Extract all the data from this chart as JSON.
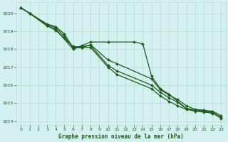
{
  "title": "Graphe pression niveau de la mer (hPa)",
  "background_color": "#d4f0f0",
  "grid_color": "#b8ddd0",
  "line_color": "#1a5c1a",
  "xlim": [
    -0.5,
    23.5
  ],
  "ylim": [
    1013.8,
    1020.6
  ],
  "yticks": [
    1014,
    1015,
    1016,
    1017,
    1018,
    1019,
    1020
  ],
  "xticks": [
    0,
    1,
    2,
    3,
    4,
    5,
    6,
    7,
    8,
    9,
    10,
    11,
    12,
    13,
    14,
    15,
    16,
    17,
    18,
    19,
    20,
    21,
    22,
    23
  ],
  "line1_x": [
    0,
    1,
    3,
    4,
    6,
    7,
    8,
    10,
    13,
    14,
    15,
    16,
    17,
    19,
    20,
    21,
    22
  ],
  "line1_y": [
    1020.3,
    1020.0,
    1019.3,
    1019.1,
    1018.0,
    1018.2,
    1018.4,
    1018.4,
    1018.4,
    1018.3,
    1016.5,
    1015.8,
    1015.5,
    1014.7,
    1014.6,
    1014.6,
    1014.4
  ],
  "line2_x": [
    0,
    1,
    3,
    4,
    6,
    7,
    8,
    10,
    11,
    15,
    16,
    17,
    18,
    19,
    20,
    21,
    22,
    23
  ],
  "line2_y": [
    1020.3,
    1020.0,
    1019.3,
    1019.05,
    1018.15,
    1018.1,
    1018.25,
    1017.4,
    1017.2,
    1016.35,
    1015.75,
    1015.45,
    1015.2,
    1014.85,
    1014.65,
    1014.6,
    1014.55,
    1014.3
  ],
  "line3_x": [
    0,
    1,
    3,
    4,
    5,
    6,
    7,
    8,
    10,
    11,
    15,
    16,
    17,
    18,
    19,
    20,
    21,
    22,
    23
  ],
  "line3_y": [
    1020.3,
    1020.0,
    1019.35,
    1019.2,
    1018.7,
    1018.1,
    1018.15,
    1018.2,
    1017.1,
    1016.8,
    1016.0,
    1015.6,
    1015.3,
    1015.05,
    1014.7,
    1014.6,
    1014.55,
    1014.5,
    1014.2
  ],
  "line4_x": [
    0,
    1,
    3,
    4,
    5,
    6,
    7,
    8,
    10,
    11,
    15,
    16,
    17,
    18,
    19,
    20,
    21,
    22,
    23
  ],
  "line4_y": [
    1020.3,
    1020.0,
    1019.4,
    1019.25,
    1018.85,
    1018.05,
    1018.1,
    1018.1,
    1017.0,
    1016.6,
    1015.8,
    1015.4,
    1015.1,
    1014.85,
    1014.65,
    1014.55,
    1014.5,
    1014.45,
    1014.15
  ]
}
